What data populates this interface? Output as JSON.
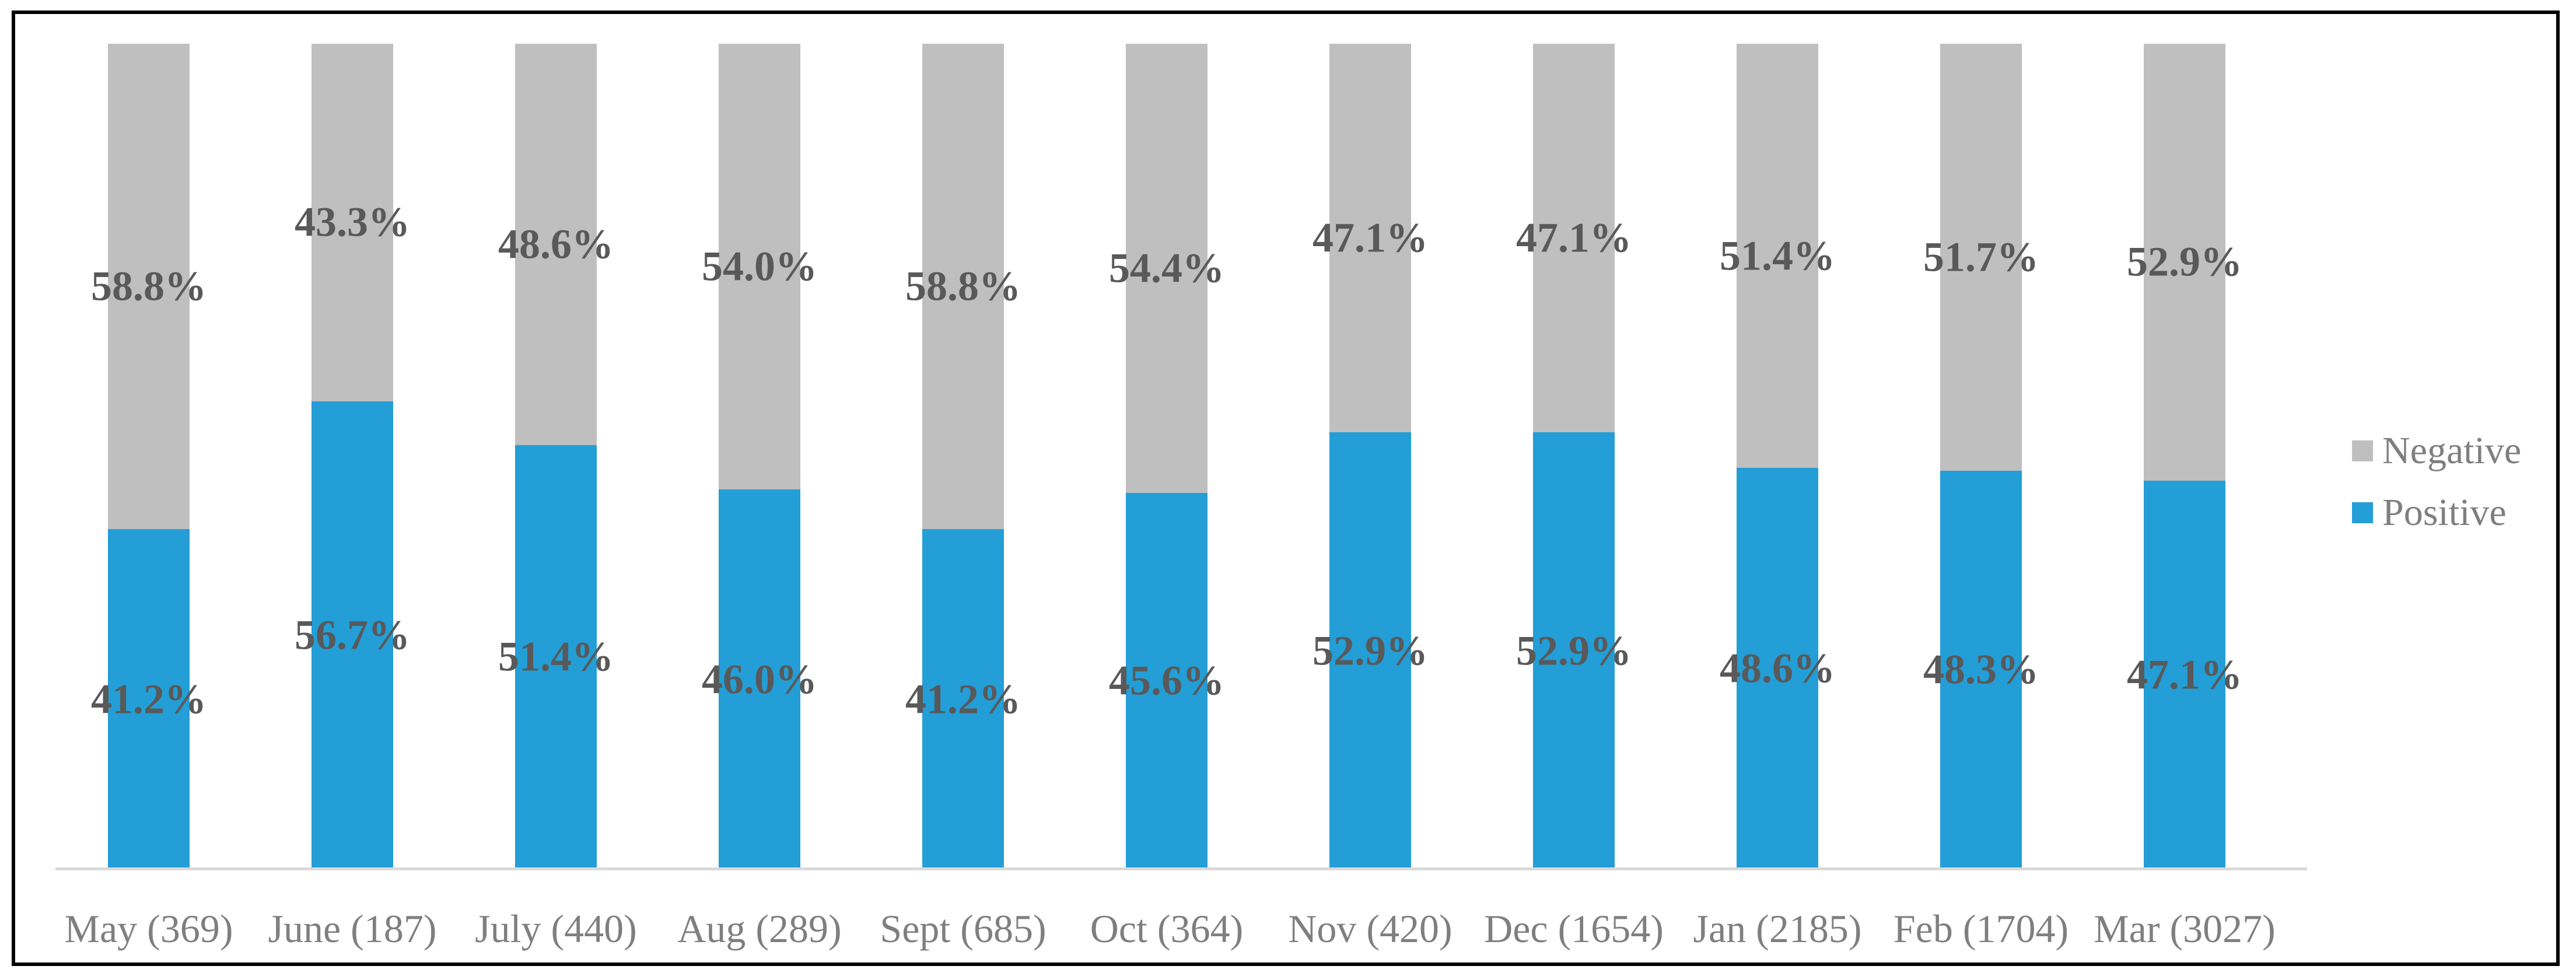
{
  "chart_data": {
    "type": "bar",
    "stacked": true,
    "orientation": "vertical",
    "title": "",
    "xlabel": "",
    "ylabel": "",
    "ylim": [
      0,
      100
    ],
    "grid": false,
    "legend_position": "right",
    "categories": [
      "May (369)",
      "June (187)",
      "July (440)",
      "Aug (289)",
      "Sept (685)",
      "Oct (364)",
      "Nov (420)",
      "Dec (1654)",
      "Jan (2185)",
      "Feb (1704)",
      "Mar (3027)"
    ],
    "counts": [
      369,
      187,
      440,
      289,
      685,
      364,
      420,
      1654,
      2185,
      1704,
      3027
    ],
    "series": [
      {
        "name": "Positive",
        "color": "#239ed7",
        "values": [
          41.2,
          56.7,
          51.4,
          46.0,
          41.2,
          45.6,
          52.9,
          52.9,
          48.6,
          48.3,
          47.1
        ],
        "labels": [
          "41.2%",
          "56.7%",
          "51.4%",
          "46.0%",
          "41.2%",
          "45.6%",
          "52.9%",
          "52.9%",
          "48.6%",
          "48.3%",
          "47.1%"
        ]
      },
      {
        "name": "Negative",
        "color": "#bfbfbf",
        "values": [
          58.8,
          43.3,
          48.6,
          54.0,
          58.8,
          54.4,
          47.1,
          47.1,
          51.4,
          51.7,
          52.9
        ],
        "labels": [
          "58.8%",
          "43.3%",
          "48.6%",
          "54.0%",
          "58.8%",
          "54.4%",
          "47.1%",
          "47.1%",
          "51.4%",
          "51.7%",
          "52.9%"
        ]
      }
    ],
    "legend": [
      {
        "label": "Negative",
        "color": "#bfbfbf"
      },
      {
        "label": "Positive",
        "color": "#239ed7"
      }
    ],
    "colors": {
      "data_label": "#595959",
      "axis_text": "#7f7f7f",
      "axis_line": "#d9d9d9",
      "frame_border": "#000000",
      "background": "#ffffff"
    }
  }
}
